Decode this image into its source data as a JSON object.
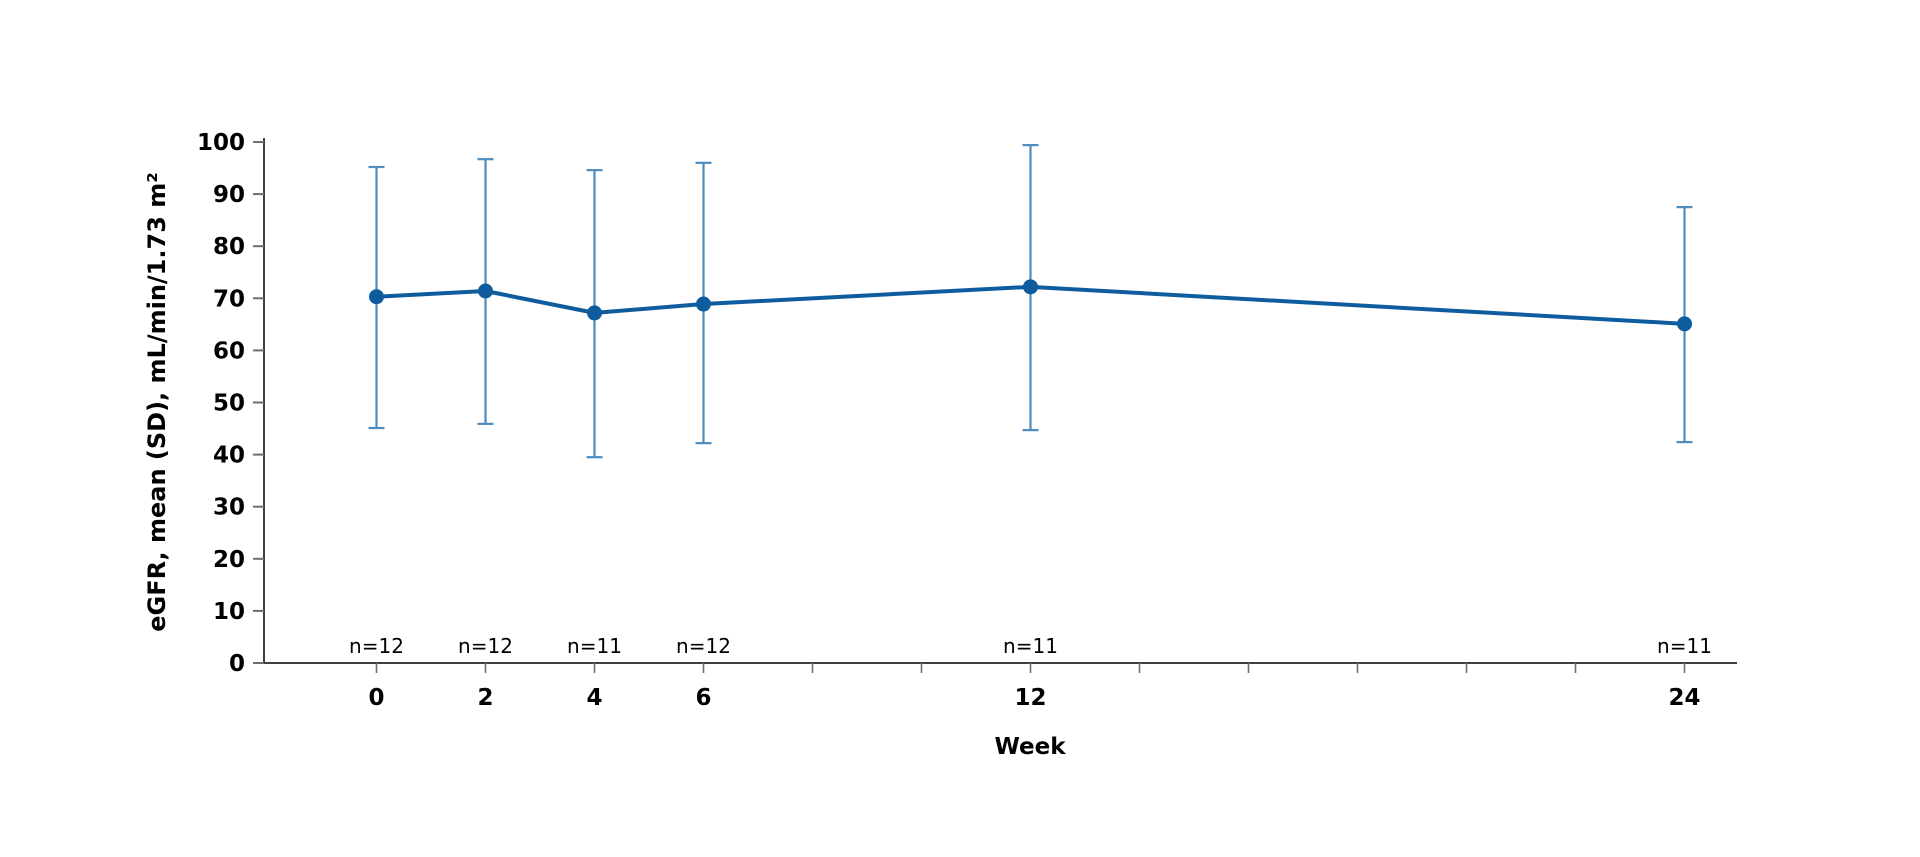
{
  "chart_data": {
    "type": "line",
    "title": "",
    "xlabel": "Week",
    "ylabel": "eGFR, mean (SD), mL/min/1.73 m²",
    "x": [
      0,
      2,
      4,
      6,
      12,
      24
    ],
    "x_tick_labels": [
      "0",
      "2",
      "4",
      "6",
      "12",
      "24"
    ],
    "x_minor_ticks": [
      0,
      2,
      4,
      6,
      8,
      10,
      12,
      14,
      16,
      18,
      20,
      22,
      24
    ],
    "y_ticks": [
      0,
      10,
      20,
      30,
      40,
      50,
      60,
      70,
      80,
      90,
      100
    ],
    "ylim": [
      0,
      100
    ],
    "xlim": [
      -2.1,
      25
    ],
    "grid": false,
    "legend": false,
    "series": [
      {
        "name": "eGFR mean (SD)",
        "mean": [
          70.3,
          71.4,
          67.2,
          68.9,
          72.2,
          65.1
        ],
        "upper": [
          95.2,
          96.7,
          94.6,
          96.0,
          99.4,
          87.5
        ],
        "lower": [
          45.1,
          45.9,
          39.5,
          42.2,
          44.7,
          42.4
        ]
      }
    ],
    "n_labels": [
      "n=12",
      "n=12",
      "n=11",
      "n=12",
      "n=11",
      "n=11"
    ],
    "colors": {
      "series": "#0E5C9E",
      "error_bar": "#4E8CBE",
      "axis": "#3F3F3F",
      "tick": "#6E6E6E",
      "text": "#000000",
      "background": "#FFFFFF"
    }
  }
}
